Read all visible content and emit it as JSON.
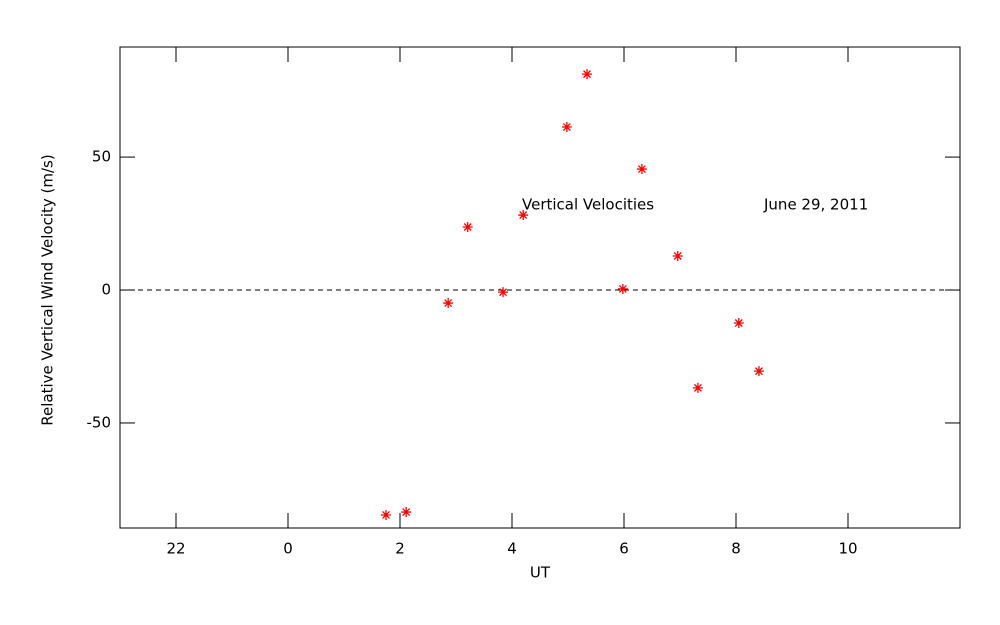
{
  "chart_data": {
    "type": "scatter",
    "xlabel": "UT",
    "ylabel": "Relative Vertical Wind Velocity (m/s)",
    "annotations": [
      "Vertical Velocities",
      "June 29, 2011"
    ],
    "x": [
      1.75,
      2.11,
      2.86,
      3.21,
      3.84,
      4.2,
      4.98,
      5.34,
      5.98,
      6.32,
      6.96,
      7.32,
      8.05,
      8.41
    ],
    "series": [
      {
        "color": "#ff0000",
        "values": [
          -84.6,
          -83.5,
          -4.9,
          23.7,
          -0.8,
          28.2,
          61.3,
          81.2,
          0.4,
          45.5,
          12.8,
          -36.8,
          -12.4,
          -30.5
        ]
      }
    ],
    "xlim": [
      -3,
      12
    ],
    "xticks": [
      {
        "value": -2,
        "label": "22"
      },
      0,
      2,
      4,
      6,
      8,
      10
    ],
    "ylim": [
      -89.5,
      91.4
    ],
    "yticks": [
      -50,
      0,
      50
    ],
    "reference_line": 0
  }
}
